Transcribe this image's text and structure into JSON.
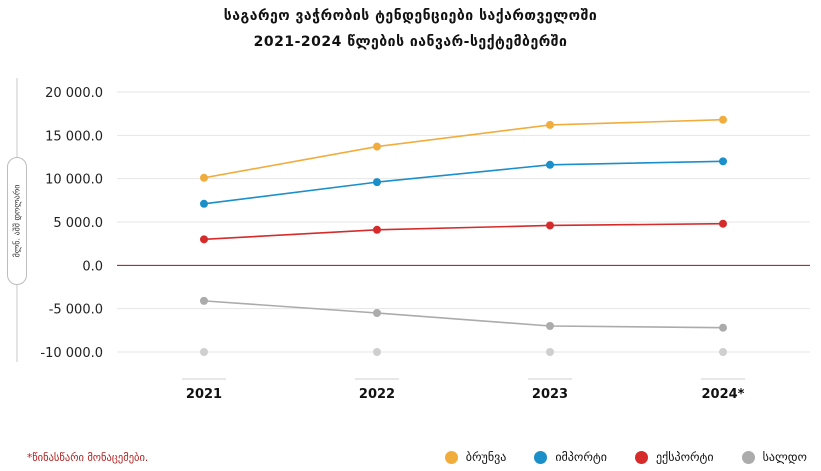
{
  "chart_data": {
    "type": "line",
    "title": "საგარეო  ვაჭრობის ტენდენციები საქართველოში",
    "subtitle": "2021-2024 წლების იანვარ-სექტემბერში",
    "ylabel": "მლნ. აშშ დოლარი",
    "ylim": [
      -10000,
      20000
    ],
    "yticks": [
      "20 000.0",
      "15 000.0",
      "10 000.0",
      "5 000.0",
      "0.0",
      "-5 000.0",
      "-10 000.0"
    ],
    "ytick_values": [
      20000,
      15000,
      10000,
      5000,
      0,
      -5000,
      -10000
    ],
    "categories": [
      "2021",
      "2022",
      "2023",
      "2024*"
    ],
    "series": [
      {
        "name": "ბრუნვა",
        "color": "#F0AD3E",
        "values": [
          10100,
          13700,
          16200,
          16800
        ]
      },
      {
        "name": "იმპორტი",
        "color": "#1A8FC9",
        "values": [
          7100,
          9600,
          11600,
          12000
        ]
      },
      {
        "name": "ექსპორტი",
        "color": "#D62B2B",
        "values": [
          3000,
          4100,
          4600,
          4800
        ]
      },
      {
        "name": "სალდო",
        "color": "#ABABAB",
        "values": [
          -4100,
          -5500,
          -7000,
          -7200
        ]
      }
    ],
    "grid": true,
    "legend_position": "bottom-right"
  },
  "footnote": "*წინასწარი მონაცემები."
}
